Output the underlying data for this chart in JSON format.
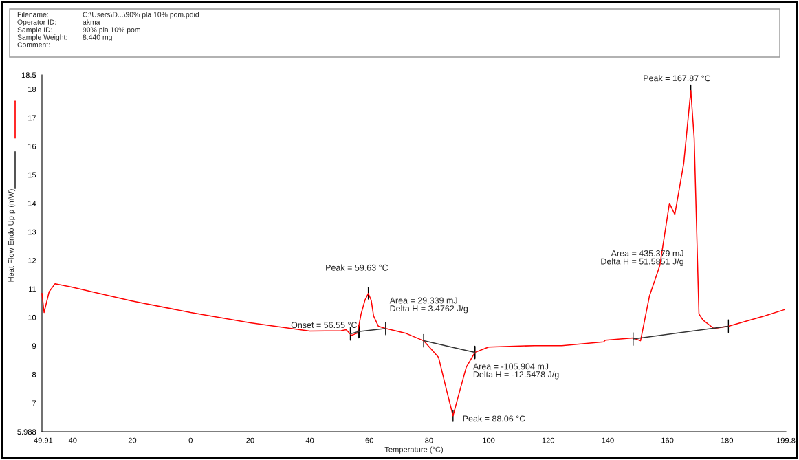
{
  "chart_data": {
    "type": "line",
    "xlabel": "Temperature (°C)",
    "ylabel": "Heat Flow Endo Up p (mW)",
    "xlim": [
      -49.91,
      199.8
    ],
    "xticks": [
      -49.91,
      -40,
      -20,
      0,
      20,
      40,
      60,
      80,
      100,
      120,
      140,
      160,
      180,
      199.8
    ],
    "ylim": [
      5.988,
      18.5
    ],
    "yticks": [
      5.988,
      7,
      8,
      9,
      10,
      11,
      12,
      13,
      14,
      15,
      16,
      17,
      18,
      18.5
    ],
    "grid": false,
    "legend": false,
    "marker": "none",
    "line_style": "solid",
    "series": [
      {
        "color": "#ff0000",
        "x": [
          -49.91,
          -49.2,
          -47.5,
          -45.5,
          -40,
          -20,
          0,
          20,
          40,
          50.5,
          52.2,
          54.0,
          56.0,
          57.2,
          58.5,
          59.63,
          60.6,
          61.4,
          63.0,
          65.5,
          72,
          78.2,
          83.2,
          86.0,
          88.06,
          90.0,
          92.5,
          95.4,
          100,
          115.4,
          124.6,
          138.6,
          139.2,
          148.5,
          151,
          154,
          157.5,
          160.7,
          162.5,
          165.5,
          167.87,
          169,
          170.6,
          172,
          175.6,
          180.5,
          192.6,
          199.3
        ],
        "values": [
          10.84,
          10.17,
          10.9,
          11.18,
          11.06,
          10.58,
          10.17,
          9.81,
          9.52,
          9.53,
          9.57,
          9.37,
          9.45,
          10.12,
          10.6,
          10.84,
          10.6,
          10.05,
          9.69,
          9.61,
          9.45,
          9.18,
          8.6,
          7.4,
          6.55,
          7.3,
          8.25,
          8.77,
          8.96,
          9.01,
          9.01,
          9.14,
          9.2,
          9.28,
          9.18,
          10.75,
          11.83,
          14.0,
          13.61,
          15.4,
          17.95,
          16.29,
          10.12,
          9.9,
          9.61,
          9.69,
          10.05,
          10.27
        ]
      },
      {
        "color": "#333333",
        "x": [
          53.6,
          56.3,
          65.5
        ],
        "values": [
          9.42,
          9.5,
          9.61
        ]
      },
      {
        "color": "#333333",
        "x": [
          78.2,
          95.4
        ],
        "values": [
          9.18,
          8.77
        ]
      },
      {
        "color": "#333333",
        "x": [
          148.5,
          180.5
        ],
        "values": [
          9.24,
          9.69
        ]
      }
    ],
    "annotations": [
      "Filename: C:\\Users\\D...\\90% pla 10% pom.pdid",
      "Operator ID: akma",
      "Sample ID: 90% pla 10% pom",
      "Sample Weight: 8.440 mg",
      "Comment:",
      {
        "text": "Onset = 56.55 °C",
        "x": 56.55,
        "y": 9.5
      },
      {
        "text": "Peak = 59.63 °C",
        "x": 59.63,
        "y": 10.84
      },
      {
        "text": "Area = 29.339 mJ\nDelta H = 3.4762 J/g",
        "x": 65.5,
        "y": 9.61
      },
      {
        "text": "Area = -105.904 mJ\nDelta H = -12.5478 J/g",
        "x": 95.4,
        "y": 8.77
      },
      {
        "text": "Peak = 88.06 °C",
        "x": 88.06,
        "y": 6.55
      },
      {
        "text": "Area = 435.379 mJ\nDelta H = 51.5851 J/g",
        "x": 158.5,
        "y": 12.2
      },
      {
        "text": "Peak = 167.87 °C",
        "x": 167.87,
        "y": 17.95
      }
    ]
  }
}
